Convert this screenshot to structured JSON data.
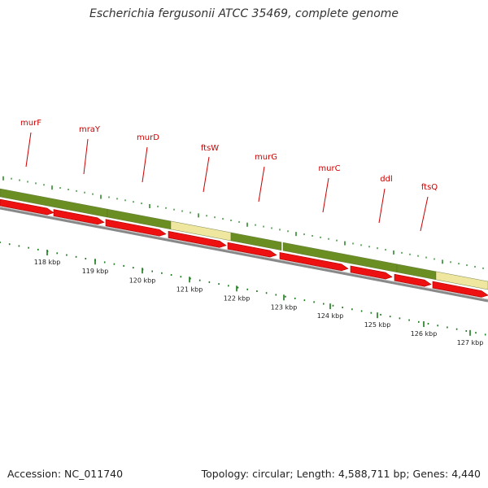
{
  "title": "Escherichia fergusonii ATCC 35469, complete genome",
  "footer": {
    "accession": "Accession: NC_011740",
    "summary": "Topology: circular; Length: 4,588,711 bp; Genes: 4,440"
  },
  "colors": {
    "gene_label": "#cc0000",
    "cds_arrow": "#ee1111",
    "band_green": "#6b8e23",
    "band_yellow": "#efe6a0",
    "backbone": "#888888",
    "tick": "#2e8b2e",
    "kbp_dot": "#1a7a1a"
  },
  "genes": [
    {
      "name": "murF"
    },
    {
      "name": "mraY"
    },
    {
      "name": "murD"
    },
    {
      "name": "ftsW"
    },
    {
      "name": "murG"
    },
    {
      "name": "murC"
    },
    {
      "name": "ddl"
    },
    {
      "name": "ftsQ"
    }
  ],
  "kbp_ticks": [
    {
      "label": "118 kbp"
    },
    {
      "label": "119 kbp"
    },
    {
      "label": "120 kbp"
    },
    {
      "label": "121 kbp"
    },
    {
      "label": "122 kbp"
    },
    {
      "label": "123 kbp"
    },
    {
      "label": "124 kbp"
    },
    {
      "label": "125 kbp"
    },
    {
      "label": "126 kbp"
    },
    {
      "label": "127 kbp"
    }
  ]
}
